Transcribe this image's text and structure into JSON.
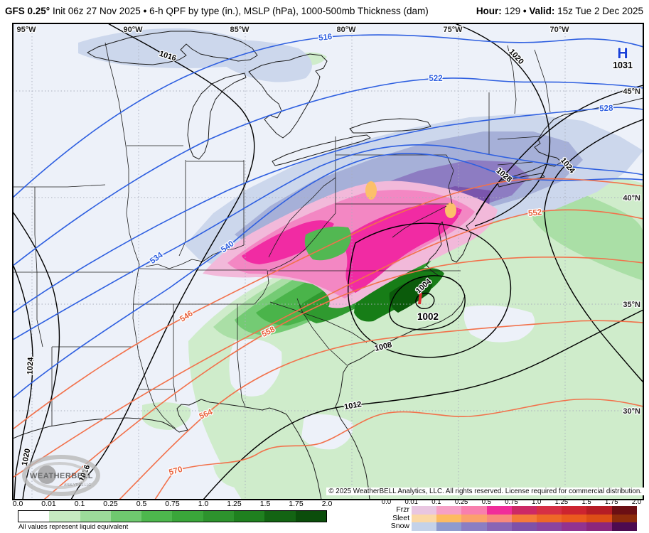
{
  "header": {
    "model": "GFS 0.25°",
    "init": "Init 06z 27 Nov 2025",
    "sep": "•",
    "product": "6-h QPF by type (in.), MSLP (hPa), 1000-500mb Thickness (dam)",
    "hour_label": "Hour:",
    "hour_value": "129",
    "valid_label": "Valid:",
    "valid_value": "15z Tue 2 Dec 2025"
  },
  "map": {
    "lons": [
      "95°W",
      "90°W",
      "85°W",
      "80°W",
      "75°W",
      "70°W"
    ],
    "lats": [
      "45°N",
      "40°N",
      "35°N",
      "30°N"
    ],
    "high": {
      "letter": "H",
      "value": "1031"
    },
    "low": {
      "value": "1002"
    },
    "isobars": [
      "1016",
      "1016",
      "1020",
      "1020",
      "1024",
      "1024",
      "1028",
      "1012",
      "1008",
      "1004"
    ],
    "thickness_blue": [
      "516",
      "522",
      "528",
      "534",
      "540"
    ],
    "thickness_orange": [
      "546",
      "552",
      "558",
      "564",
      "570"
    ],
    "logo": {
      "name": "WEATHERBELL",
      "sub": "ANALYTICS LLC"
    },
    "copyright": "© 2025 WeatherBELL Analytics, LLC. All rights reserved. License required for commercial distribution."
  },
  "legend": {
    "note": "All values represent liquid equivalent",
    "ticks": [
      "0.0",
      "0.01",
      "0.1",
      "0.25",
      "0.5",
      "0.75",
      "1.0",
      "1.25",
      "1.5",
      "1.75",
      "2.0"
    ],
    "rain_colors": [
      "#ffffff",
      "#c6eac2",
      "#9cdb9a",
      "#6fc96f",
      "#4db74d",
      "#3aa63a",
      "#2d932d",
      "#1f801f",
      "#136413",
      "#0b4d0b"
    ],
    "type_rows": [
      {
        "label": "Frzr",
        "colors": [
          "#e9c6e1",
          "#f6a0c6",
          "#f87fae",
          "#f02d9a",
          "#cc2966",
          "#d62f45",
          "#cc2430",
          "#b51c25",
          "#6b0f14"
        ]
      },
      {
        "label": "Sleet",
        "colors": [
          "#fbd8a5",
          "#fdbb61",
          "#fba16c",
          "#f9897c",
          "#f57a3a",
          "#ee6827",
          "#ea5a1e",
          "#dd4d16",
          "#8d2b0b"
        ]
      },
      {
        "label": "Snow",
        "colors": [
          "#c4d2e9",
          "#8f9bce",
          "#8b7ec3",
          "#8a65b5",
          "#7f51a8",
          "#8b449f",
          "#923390",
          "#8c267c",
          "#4d0b50"
        ]
      }
    ],
    "palette": {
      "thickness_cold": "#2e5fe0",
      "thickness_warm": "#f2714b",
      "isobar": "#000000",
      "high_symbol": "#1940d8",
      "low_mark": "#e03030"
    }
  }
}
